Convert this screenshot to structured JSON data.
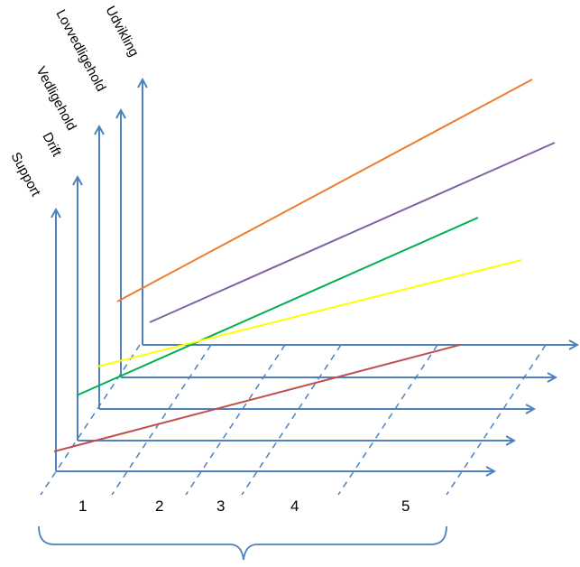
{
  "diagram": {
    "axes": [
      {
        "key": "support",
        "label": "Support"
      },
      {
        "key": "drift",
        "label": "Drift"
      },
      {
        "key": "vedligehold",
        "label": "Vedligehold"
      },
      {
        "key": "lovvedligehold",
        "label": "Lovvedligehold"
      },
      {
        "key": "udvikling",
        "label": "Udvikling"
      }
    ],
    "columns": [
      "1",
      "2",
      "3",
      "4",
      "5"
    ],
    "line_colors": {
      "orange": "#ed7d31",
      "purple": "#8064a2",
      "green": "#00b050",
      "yellow": "#ffff00",
      "red": "#c0504d"
    },
    "axis_color": "#4f81bd"
  }
}
